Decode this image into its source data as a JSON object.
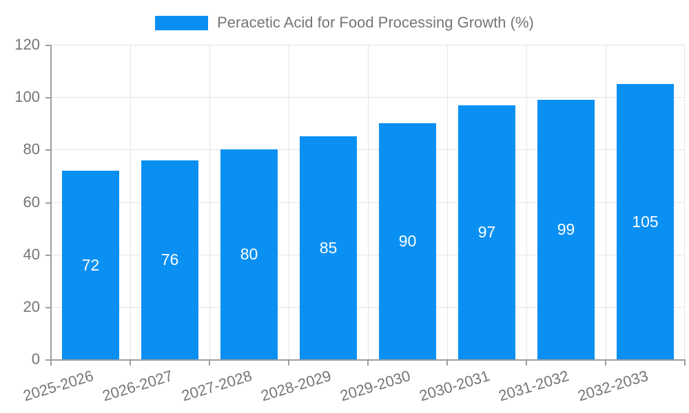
{
  "legend": {
    "label": "Peracetic Acid for Food Processing Growth (%)"
  },
  "colors": {
    "bar": "#0a90f3",
    "value_label": "#ffffff",
    "grid": "#e4e4e4",
    "axis": "#9d9d9d",
    "tick_text": "#757575",
    "background": "#ffffff"
  },
  "chart_data": {
    "type": "bar",
    "title": "Peracetic Acid for Food Processing Growth (%)",
    "xlabel": "",
    "ylabel": "",
    "categories": [
      "2025-2026",
      "2026-2027",
      "2027-2028",
      "2028-2029",
      "2029-2030",
      "2030-2031",
      "2031-2032",
      "2032-2033"
    ],
    "series": [
      {
        "name": "Peracetic Acid for Food Processing Growth (%)",
        "values": [
          72,
          76,
          80,
          85,
          90,
          97,
          99,
          105
        ]
      }
    ],
    "value_labels_shown": true,
    "ylim": [
      0,
      120
    ],
    "ytick_step": 20,
    "yticks": [
      0,
      20,
      40,
      60,
      80,
      100,
      120
    ],
    "grid": true,
    "legend_position": "top"
  }
}
